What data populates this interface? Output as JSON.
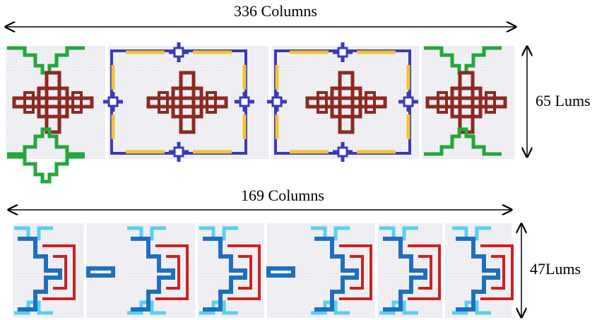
{
  "top": {
    "width_label": "336 Columns",
    "height_label": "65 Lums"
  },
  "bottom": {
    "width_label": "169 Columns",
    "height_label": "47Lums"
  }
}
